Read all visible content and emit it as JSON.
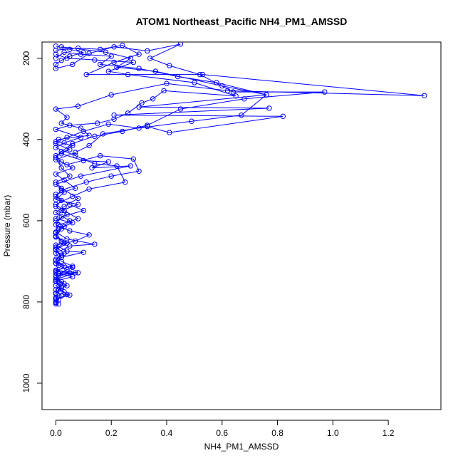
{
  "chart_data": {
    "type": "line",
    "title": "ATOM1 Northeast_Pacific NH4_PM1_AMSSD",
    "xlabel": "NH4_PM1_AMSSD",
    "ylabel": "Pressure (mbar)",
    "xlim": [
      -0.05,
      1.39
    ],
    "ylim": [
      1065,
      160
    ],
    "y_reversed": true,
    "x_ticks": [
      "0.0",
      "0.2",
      "0.4",
      "0.6",
      "0.8",
      "1.0",
      "1.2"
    ],
    "y_ticks": [
      "200",
      "400",
      "600",
      "800",
      "1000"
    ],
    "grid": false,
    "series": [
      {
        "marker": "open-circle",
        "points": [
          [
            0.0,
            170
          ],
          [
            0.05,
            178
          ],
          [
            0.1,
            186
          ],
          [
            0.05,
            195
          ],
          [
            0.02,
            205
          ],
          [
            0.0,
            215
          ],
          [
            0.0,
            225
          ],
          [
            0.06,
            215
          ],
          [
            0.12,
            188
          ],
          [
            0.21,
            172
          ],
          [
            0.33,
            182
          ],
          [
            0.45,
            165
          ],
          [
            0.34,
            200
          ],
          [
            0.41,
            218
          ],
          [
            0.52,
            240
          ],
          [
            0.64,
            283
          ],
          [
            0.97,
            283
          ],
          [
            0.68,
            300
          ],
          [
            0.45,
            325
          ],
          [
            0.33,
            365
          ],
          [
            0.24,
            380
          ],
          [
            0.14,
            392
          ],
          [
            0.06,
            410
          ],
          [
            0.02,
            430
          ],
          [
            0.0,
            445
          ],
          [
            0.02,
            470
          ],
          [
            0.05,
            490
          ],
          [
            0.0,
            505
          ],
          [
            0.02,
            520
          ],
          [
            0.08,
            545
          ],
          [
            0.03,
            565
          ],
          [
            0.0,
            580
          ],
          [
            0.05,
            600
          ],
          [
            0.02,
            620
          ],
          [
            0.0,
            640
          ],
          [
            0.03,
            655
          ],
          [
            0.0,
            670
          ],
          [
            0.02,
            690
          ],
          [
            0.0,
            705
          ],
          [
            0.04,
            720
          ],
          [
            0.01,
            735
          ],
          [
            0.0,
            750
          ],
          [
            0.02,
            765
          ],
          [
            0.0,
            780
          ],
          [
            0.01,
            795
          ],
          [
            0.0,
            805
          ]
        ]
      },
      {
        "marker": "open-circle",
        "points": [
          [
            0.0,
            180
          ],
          [
            0.08,
            175
          ],
          [
            0.16,
            178
          ],
          [
            0.24,
            168
          ],
          [
            0.3,
            190
          ],
          [
            0.21,
            210
          ],
          [
            0.11,
            240
          ],
          [
            0.53,
            240
          ],
          [
            1.33,
            292
          ],
          [
            0.62,
            280
          ],
          [
            0.4,
            262
          ],
          [
            0.2,
            290
          ],
          [
            0.08,
            318
          ],
          [
            0.0,
            325
          ],
          [
            0.04,
            345
          ],
          [
            0.02,
            360
          ],
          [
            0.09,
            372
          ],
          [
            0.12,
            390
          ],
          [
            0.01,
            400
          ],
          [
            0.0,
            410
          ],
          [
            0.05,
            425
          ],
          [
            0.0,
            440
          ],
          [
            0.02,
            455
          ],
          [
            0.06,
            470
          ],
          [
            0.0,
            485
          ],
          [
            0.03,
            500
          ],
          [
            0.07,
            520
          ],
          [
            0.0,
            535
          ],
          [
            0.02,
            550
          ],
          [
            0.0,
            565
          ],
          [
            0.04,
            585
          ],
          [
            0.0,
            600
          ],
          [
            0.03,
            615
          ],
          [
            0.0,
            630
          ],
          [
            0.02,
            650
          ],
          [
            0.0,
            665
          ],
          [
            0.03,
            680
          ],
          [
            0.0,
            695
          ],
          [
            0.01,
            710
          ],
          [
            0.0,
            725
          ],
          [
            0.05,
            728
          ],
          [
            0.0,
            740
          ],
          [
            0.03,
            755
          ],
          [
            0.0,
            770
          ],
          [
            0.02,
            785
          ],
          [
            0.0,
            800
          ]
        ]
      },
      {
        "marker": "open-circle",
        "points": [
          [
            0.02,
            172
          ],
          [
            0.18,
            185
          ],
          [
            0.27,
            200
          ],
          [
            0.22,
            222
          ],
          [
            0.36,
            232
          ],
          [
            0.6,
            268
          ],
          [
            0.76,
            290
          ],
          [
            0.3,
            320
          ],
          [
            0.77,
            323
          ],
          [
            0.21,
            340
          ],
          [
            0.82,
            343
          ],
          [
            0.41,
            383
          ],
          [
            0.33,
            368
          ],
          [
            0.17,
            386
          ],
          [
            0.12,
            415
          ],
          [
            0.07,
            432
          ],
          [
            0.0,
            450
          ],
          [
            0.04,
            462
          ],
          [
            0.16,
            440
          ],
          [
            0.28,
            448
          ],
          [
            0.3,
            478
          ],
          [
            0.2,
            490
          ],
          [
            0.11,
            505
          ],
          [
            0.02,
            525
          ],
          [
            0.0,
            540
          ],
          [
            0.05,
            560
          ],
          [
            0.1,
            575
          ],
          [
            0.02,
            590
          ],
          [
            0.0,
            610
          ],
          [
            0.05,
            625
          ],
          [
            0.12,
            635
          ],
          [
            0.07,
            650
          ],
          [
            0.0,
            660
          ],
          [
            0.04,
            675
          ],
          [
            0.1,
            678
          ],
          [
            0.02,
            690
          ],
          [
            0.0,
            705
          ],
          [
            0.06,
            715
          ],
          [
            0.01,
            730
          ],
          [
            0.07,
            728
          ],
          [
            0.0,
            745
          ],
          [
            0.04,
            760
          ],
          [
            0.01,
            770
          ],
          [
            0.05,
            783
          ],
          [
            0.0,
            792
          ],
          [
            0.01,
            805
          ]
        ]
      },
      {
        "marker": "open-circle",
        "points": [
          [
            0.0,
            190
          ],
          [
            0.04,
            200
          ],
          [
            0.14,
            204
          ],
          [
            0.28,
            210
          ],
          [
            0.19,
            232
          ],
          [
            0.26,
            240
          ],
          [
            0.5,
            260
          ],
          [
            0.65,
            293
          ],
          [
            0.39,
            280
          ],
          [
            0.35,
            300
          ],
          [
            0.31,
            310
          ],
          [
            0.26,
            335
          ],
          [
            0.21,
            350
          ],
          [
            0.15,
            360
          ],
          [
            0.05,
            365
          ],
          [
            0.0,
            375
          ],
          [
            0.09,
            395
          ],
          [
            0.03,
            408
          ],
          [
            0.0,
            420
          ],
          [
            0.07,
            440
          ],
          [
            0.14,
            460
          ],
          [
            0.22,
            465
          ],
          [
            0.25,
            505
          ],
          [
            0.12,
            522
          ],
          [
            0.06,
            540
          ],
          [
            0.0,
            560
          ],
          [
            0.03,
            575
          ],
          [
            0.08,
            595
          ],
          [
            0.01,
            610
          ],
          [
            0.0,
            628
          ],
          [
            0.04,
            645
          ],
          [
            0.14,
            658
          ],
          [
            0.05,
            662
          ],
          [
            0.0,
            680
          ],
          [
            0.02,
            700
          ],
          [
            0.06,
            712
          ],
          [
            0.0,
            722
          ],
          [
            0.08,
            728
          ],
          [
            0.0,
            735
          ],
          [
            0.02,
            750
          ],
          [
            0.0,
            760
          ],
          [
            0.03,
            775
          ],
          [
            0.0,
            790
          ],
          [
            0.0,
            802
          ]
        ]
      },
      {
        "marker": "open-circle",
        "points": [
          [
            0.0,
            200
          ],
          [
            0.03,
            185
          ],
          [
            0.09,
            190
          ],
          [
            0.2,
            195
          ],
          [
            0.16,
            215
          ],
          [
            0.3,
            225
          ],
          [
            0.44,
            245
          ],
          [
            0.58,
            260
          ],
          [
            0.76,
            290
          ],
          [
            0.67,
            340
          ],
          [
            0.49,
            355
          ],
          [
            0.3,
            372
          ],
          [
            0.19,
            362
          ],
          [
            0.1,
            380
          ],
          [
            0.04,
            395
          ],
          [
            0.0,
            405
          ],
          [
            0.06,
            415
          ],
          [
            0.02,
            435
          ],
          [
            0.1,
            452
          ],
          [
            0.19,
            455
          ],
          [
            0.13,
            470
          ],
          [
            0.27,
            465
          ],
          [
            0.09,
            490
          ],
          [
            0.0,
            510
          ],
          [
            0.03,
            530
          ],
          [
            0.0,
            548
          ],
          [
            0.08,
            560
          ],
          [
            0.02,
            575
          ],
          [
            0.0,
            595
          ],
          [
            0.06,
            605
          ],
          [
            0.01,
            620
          ],
          [
            0.0,
            638
          ],
          [
            0.04,
            655
          ],
          [
            0.0,
            672
          ],
          [
            0.02,
            685
          ],
          [
            0.0,
            698
          ],
          [
            0.03,
            712
          ],
          [
            0.0,
            728
          ],
          [
            0.06,
            738
          ],
          [
            0.0,
            748
          ],
          [
            0.02,
            762
          ],
          [
            0.0,
            778
          ],
          [
            0.04,
            782
          ],
          [
            0.0,
            795
          ]
        ]
      }
    ]
  },
  "colors": {
    "series": "#0000ff",
    "axes": "#000000",
    "background": "#ffffff"
  }
}
